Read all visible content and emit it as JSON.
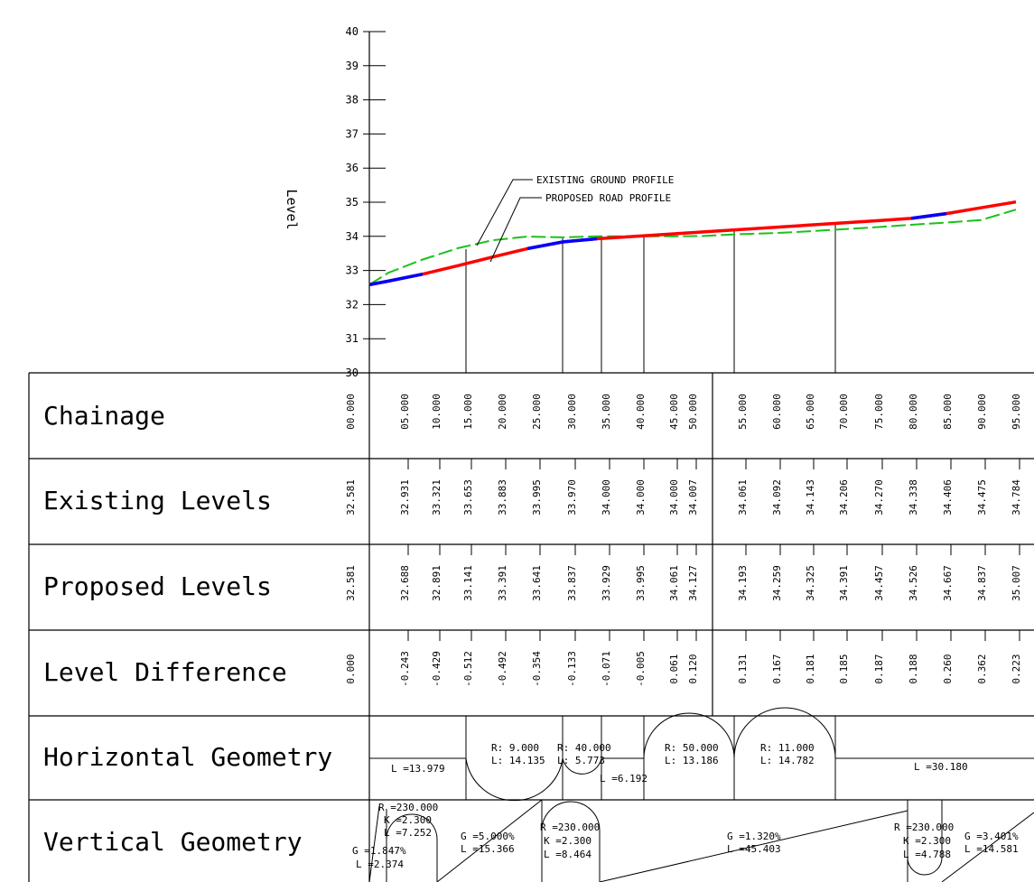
{
  "level_axis": {
    "label": "Level",
    "ticks": [
      30,
      31,
      32,
      33,
      34,
      35,
      36,
      37,
      38,
      39,
      40
    ]
  },
  "legend": {
    "existing": "EXISTING GROUND PROFILE",
    "proposed": "PROPOSED ROAD PROFILE"
  },
  "colors": {
    "existing": "#19c219",
    "proposed": "#ff0000",
    "curve": "#0000ff",
    "lines": "#000000"
  },
  "rows": {
    "chainage": "Chainage",
    "existing": "Existing Levels",
    "proposed": "Proposed Levels",
    "difference": "Level Difference",
    "horizontal": "Horizontal Geometry",
    "vertical": "Vertical Geometry"
  },
  "table": {
    "chainage": [
      "00.000",
      "05.000",
      "10.000",
      "15.000",
      "20.000",
      "25.000",
      "30.000",
      "35.000",
      "40.000",
      "45.000",
      "50.000",
      "55.000",
      "60.000",
      "65.000",
      "70.000",
      "75.000",
      "80.000",
      "85.000",
      "90.000",
      "95.000"
    ],
    "existing": [
      "32.581",
      "32.931",
      "33.321",
      "33.653",
      "33.883",
      "33.995",
      "33.970",
      "34.000",
      "34.000",
      "34.000",
      "34.007",
      "34.061",
      "34.092",
      "34.143",
      "34.206",
      "34.270",
      "34.338",
      "34.406",
      "34.475",
      "34.784"
    ],
    "proposed": [
      "32.581",
      "32.688",
      "32.891",
      "33.141",
      "33.391",
      "33.641",
      "33.837",
      "33.929",
      "33.995",
      "34.061",
      "34.127",
      "34.193",
      "34.259",
      "34.325",
      "34.391",
      "34.457",
      "34.526",
      "34.667",
      "34.837",
      "35.007"
    ],
    "difference": [
      "0.000",
      "-0.243",
      "-0.429",
      "-0.512",
      "-0.492",
      "-0.354",
      "-0.133",
      "-0.071",
      "-0.005",
      "0.061",
      "0.120",
      "0.131",
      "0.167",
      "0.181",
      "0.185",
      "0.187",
      "0.188",
      "0.260",
      "0.362",
      "0.223"
    ]
  },
  "horizontal": {
    "l1": "L =13.979",
    "c1_r": "R: 9.000",
    "c1_l": "L: 14.135",
    "c2_r": "R: 40.000",
    "c2_l": "L: 5.773",
    "l2": "L =6.192",
    "c3_r": "R: 50.000",
    "c3_l": "L: 13.186",
    "c4_r": "R: 11.000",
    "c4_l": "L: 14.782",
    "l3": "L =30.180"
  },
  "vertical": {
    "g1_g": "G =1.847%",
    "g1_l": "L =2.374",
    "v1_r": "R =230.000",
    "v1_k": "K =2.300",
    "v1_l": "L =7.252",
    "g2_g": "G =5.000%",
    "g2_l": "L =15.366",
    "v2_r": "R =230.000",
    "v2_k": "K =2.300",
    "v2_l": "L =8.464",
    "g3_g": "G =1.320%",
    "g3_l": "L =45.403",
    "v3_r": "R =230.000",
    "v3_k": "K =2.300",
    "v3_l": "L =4.788",
    "g4_g": "G =3.401%",
    "g4_l": "L =14.581"
  },
  "chart_data": {
    "type": "line",
    "ylabel": "Level",
    "ylim": [
      30,
      40
    ],
    "x": [
      0,
      5,
      10,
      15,
      20,
      25,
      30,
      35,
      40,
      45,
      50,
      55,
      60,
      65,
      70,
      75,
      80,
      85,
      90,
      95
    ],
    "series": [
      {
        "name": "EXISTING GROUND PROFILE",
        "values": [
          32.581,
          32.931,
          33.321,
          33.653,
          33.883,
          33.995,
          33.97,
          34.0,
          34.0,
          34.0,
          34.007,
          34.061,
          34.092,
          34.143,
          34.206,
          34.27,
          34.338,
          34.406,
          34.475,
          34.784
        ]
      },
      {
        "name": "PROPOSED ROAD PROFILE",
        "values": [
          32.581,
          32.688,
          32.891,
          33.141,
          33.391,
          33.641,
          33.837,
          33.929,
          33.995,
          34.061,
          34.127,
          34.193,
          34.259,
          34.325,
          34.391,
          34.457,
          34.526,
          34.667,
          34.837,
          35.007
        ]
      }
    ]
  }
}
